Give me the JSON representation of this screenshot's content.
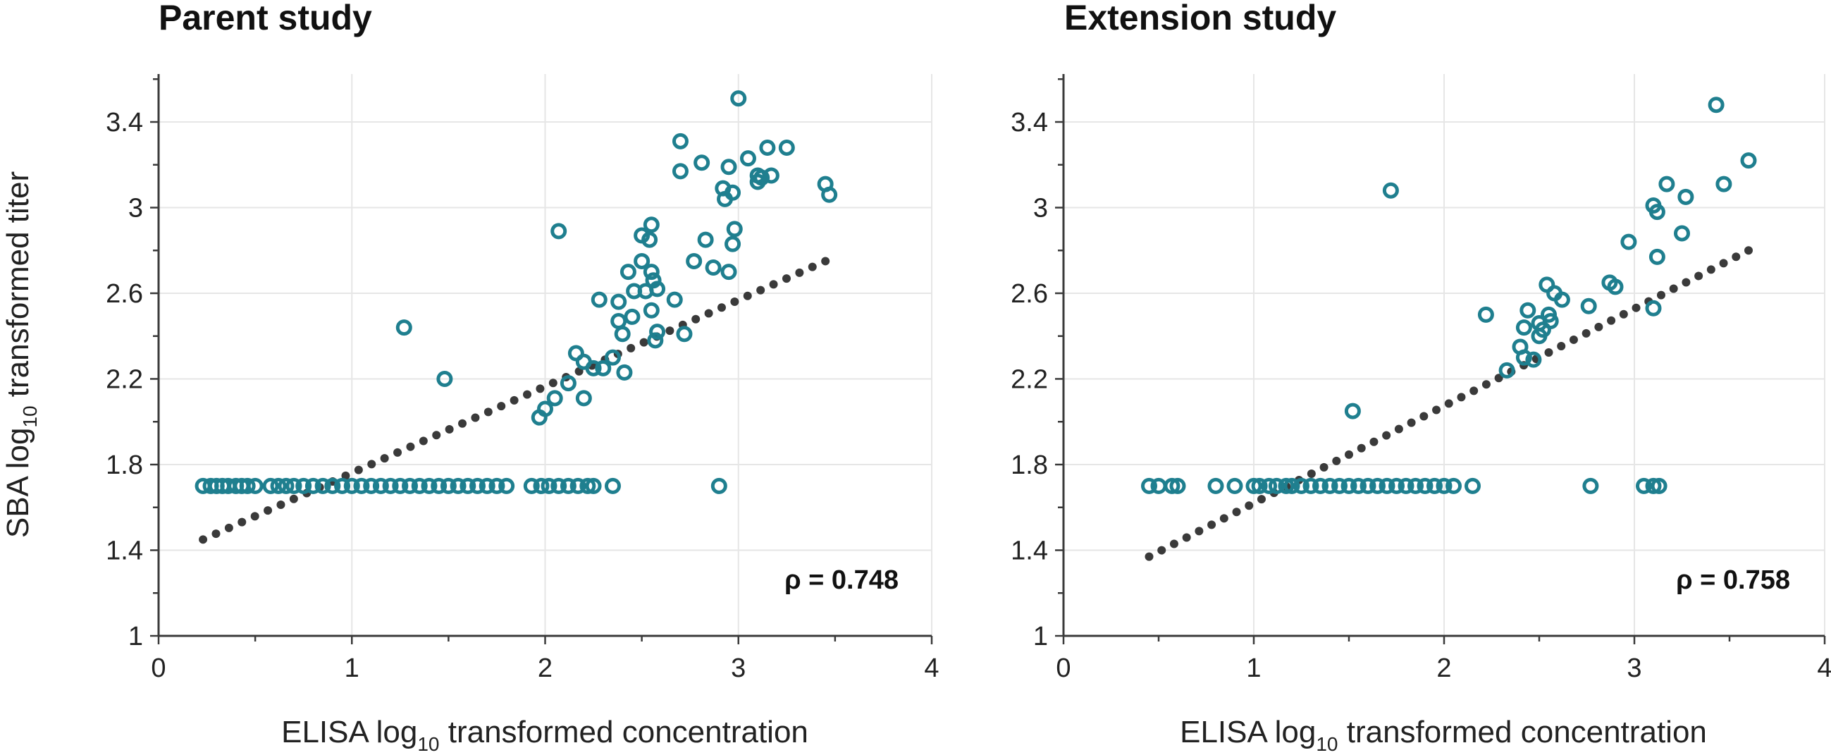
{
  "colors": {
    "points": "#1f7f8f",
    "fit_line": "#3a3a3a",
    "axis": "#3a3a3a",
    "grid": "#e6e6e6"
  },
  "shared": {
    "ylabel_prefix": "SBA log",
    "ylabel_sub": "10",
    "ylabel_suffix": " transformed titer",
    "xlabel_prefix": "ELISA log",
    "xlabel_sub": "10",
    "xlabel_suffix": " transformed concentration"
  },
  "chart_data": [
    {
      "type": "scatter",
      "title": "Parent study",
      "xlabel": "ELISA log10 transformed concentration",
      "ylabel": "SBA log10 transformed titer",
      "xlim": [
        0,
        4
      ],
      "ylim": [
        1,
        3.6
      ],
      "xticks": [
        0,
        1,
        2,
        3,
        4
      ],
      "yticks": [
        1,
        1.4,
        1.8,
        2.2,
        2.6,
        3,
        3.4
      ],
      "grid": true,
      "annotation": "ρ = 0.748",
      "annotation_position": "bottom-right",
      "fit_line": {
        "x0": 0.23,
        "y0": 1.45,
        "x1": 3.45,
        "y1": 2.75
      },
      "points": [
        [
          0.23,
          1.7
        ],
        [
          0.27,
          1.7
        ],
        [
          0.3,
          1.7
        ],
        [
          0.33,
          1.7
        ],
        [
          0.36,
          1.7
        ],
        [
          0.4,
          1.7
        ],
        [
          0.43,
          1.7
        ],
        [
          0.46,
          1.7
        ],
        [
          0.5,
          1.7
        ],
        [
          0.58,
          1.7
        ],
        [
          0.62,
          1.7
        ],
        [
          0.66,
          1.7
        ],
        [
          0.7,
          1.7
        ],
        [
          0.75,
          1.7
        ],
        [
          0.8,
          1.7
        ],
        [
          0.85,
          1.7
        ],
        [
          0.9,
          1.7
        ],
        [
          0.95,
          1.7
        ],
        [
          1.0,
          1.7
        ],
        [
          1.05,
          1.7
        ],
        [
          1.1,
          1.7
        ],
        [
          1.15,
          1.7
        ],
        [
          1.2,
          1.7
        ],
        [
          1.25,
          1.7
        ],
        [
          1.3,
          1.7
        ],
        [
          1.35,
          1.7
        ],
        [
          1.4,
          1.7
        ],
        [
          1.45,
          1.7
        ],
        [
          1.5,
          1.7
        ],
        [
          1.55,
          1.7
        ],
        [
          1.6,
          1.7
        ],
        [
          1.65,
          1.7
        ],
        [
          1.7,
          1.7
        ],
        [
          1.75,
          1.7
        ],
        [
          1.8,
          1.7
        ],
        [
          1.93,
          1.7
        ],
        [
          1.98,
          1.7
        ],
        [
          2.02,
          1.7
        ],
        [
          2.07,
          1.7
        ],
        [
          2.12,
          1.7
        ],
        [
          2.17,
          1.7
        ],
        [
          2.22,
          1.7
        ],
        [
          2.25,
          1.7
        ],
        [
          2.35,
          1.7
        ],
        [
          2.9,
          1.7
        ],
        [
          1.27,
          2.44
        ],
        [
          1.48,
          2.2
        ],
        [
          2.07,
          2.89
        ],
        [
          1.97,
          2.02
        ],
        [
          2.0,
          2.06
        ],
        [
          2.05,
          2.11
        ],
        [
          2.12,
          2.18
        ],
        [
          2.16,
          2.32
        ],
        [
          2.2,
          2.28
        ],
        [
          2.2,
          2.11
        ],
        [
          2.25,
          2.25
        ],
        [
          2.28,
          2.57
        ],
        [
          2.3,
          2.25
        ],
        [
          2.35,
          2.3
        ],
        [
          2.38,
          2.47
        ],
        [
          2.38,
          2.56
        ],
        [
          2.4,
          2.41
        ],
        [
          2.41,
          2.23
        ],
        [
          2.43,
          2.7
        ],
        [
          2.45,
          2.49
        ],
        [
          2.46,
          2.61
        ],
        [
          2.5,
          2.75
        ],
        [
          2.5,
          2.87
        ],
        [
          2.52,
          2.61
        ],
        [
          2.54,
          2.85
        ],
        [
          2.55,
          2.92
        ],
        [
          2.55,
          2.7
        ],
        [
          2.55,
          2.52
        ],
        [
          2.56,
          2.66
        ],
        [
          2.57,
          2.38
        ],
        [
          2.58,
          2.42
        ],
        [
          2.58,
          2.62
        ],
        [
          2.67,
          2.57
        ],
        [
          2.7,
          3.17
        ],
        [
          2.7,
          3.31
        ],
        [
          2.72,
          2.41
        ],
        [
          2.77,
          2.75
        ],
        [
          2.81,
          3.21
        ],
        [
          2.83,
          2.85
        ],
        [
          2.87,
          2.72
        ],
        [
          2.92,
          3.09
        ],
        [
          2.93,
          3.04
        ],
        [
          2.95,
          2.7
        ],
        [
          2.95,
          3.19
        ],
        [
          2.97,
          3.07
        ],
        [
          2.97,
          2.83
        ],
        [
          2.98,
          2.9
        ],
        [
          3.0,
          3.51
        ],
        [
          3.05,
          3.23
        ],
        [
          3.1,
          3.15
        ],
        [
          3.1,
          3.12
        ],
        [
          3.12,
          3.14
        ],
        [
          3.15,
          3.28
        ],
        [
          3.17,
          3.15
        ],
        [
          3.25,
          3.28
        ],
        [
          3.45,
          3.11
        ],
        [
          3.47,
          3.06
        ]
      ]
    },
    {
      "type": "scatter",
      "title": "Extension study",
      "xlabel": "ELISA log10 transformed concentration",
      "ylabel": "SBA log10 transformed titer",
      "xlim": [
        0,
        4
      ],
      "ylim": [
        1,
        3.6
      ],
      "xticks": [
        0,
        1,
        2,
        3,
        4
      ],
      "yticks": [
        1,
        1.4,
        1.8,
        2.2,
        2.6,
        3,
        3.4
      ],
      "grid": true,
      "annotation": "ρ = 0.758",
      "annotation_position": "bottom-right",
      "fit_line": {
        "x0": 0.45,
        "y0": 1.37,
        "x1": 3.6,
        "y1": 2.8
      },
      "points": [
        [
          0.45,
          1.7
        ],
        [
          0.5,
          1.7
        ],
        [
          0.57,
          1.7
        ],
        [
          0.6,
          1.7
        ],
        [
          0.8,
          1.7
        ],
        [
          0.9,
          1.7
        ],
        [
          1.0,
          1.7
        ],
        [
          1.03,
          1.7
        ],
        [
          1.08,
          1.7
        ],
        [
          1.12,
          1.7
        ],
        [
          1.17,
          1.7
        ],
        [
          1.2,
          1.7
        ],
        [
          1.25,
          1.7
        ],
        [
          1.3,
          1.7
        ],
        [
          1.35,
          1.7
        ],
        [
          1.4,
          1.7
        ],
        [
          1.45,
          1.7
        ],
        [
          1.5,
          1.7
        ],
        [
          1.55,
          1.7
        ],
        [
          1.6,
          1.7
        ],
        [
          1.65,
          1.7
        ],
        [
          1.7,
          1.7
        ],
        [
          1.75,
          1.7
        ],
        [
          1.8,
          1.7
        ],
        [
          1.85,
          1.7
        ],
        [
          1.9,
          1.7
        ],
        [
          1.95,
          1.7
        ],
        [
          2.0,
          1.7
        ],
        [
          2.05,
          1.7
        ],
        [
          2.15,
          1.7
        ],
        [
          2.77,
          1.7
        ],
        [
          3.05,
          1.7
        ],
        [
          3.1,
          1.7
        ],
        [
          3.13,
          1.7
        ],
        [
          1.52,
          2.05
        ],
        [
          1.72,
          3.08
        ],
        [
          2.22,
          2.5
        ],
        [
          2.33,
          2.24
        ],
        [
          2.4,
          2.35
        ],
        [
          2.42,
          2.3
        ],
        [
          2.42,
          2.44
        ],
        [
          2.44,
          2.52
        ],
        [
          2.47,
          2.29
        ],
        [
          2.5,
          2.4
        ],
        [
          2.5,
          2.46
        ],
        [
          2.52,
          2.43
        ],
        [
          2.54,
          2.64
        ],
        [
          2.55,
          2.5
        ],
        [
          2.56,
          2.47
        ],
        [
          2.58,
          2.6
        ],
        [
          2.62,
          2.57
        ],
        [
          2.76,
          2.54
        ],
        [
          2.87,
          2.65
        ],
        [
          2.9,
          2.63
        ],
        [
          2.97,
          2.84
        ],
        [
          3.1,
          2.53
        ],
        [
          3.1,
          3.01
        ],
        [
          3.12,
          2.98
        ],
        [
          3.12,
          2.77
        ],
        [
          3.17,
          3.11
        ],
        [
          3.25,
          2.88
        ],
        [
          3.27,
          3.05
        ],
        [
          3.43,
          3.48
        ],
        [
          3.47,
          3.11
        ],
        [
          3.6,
          3.22
        ]
      ]
    }
  ]
}
